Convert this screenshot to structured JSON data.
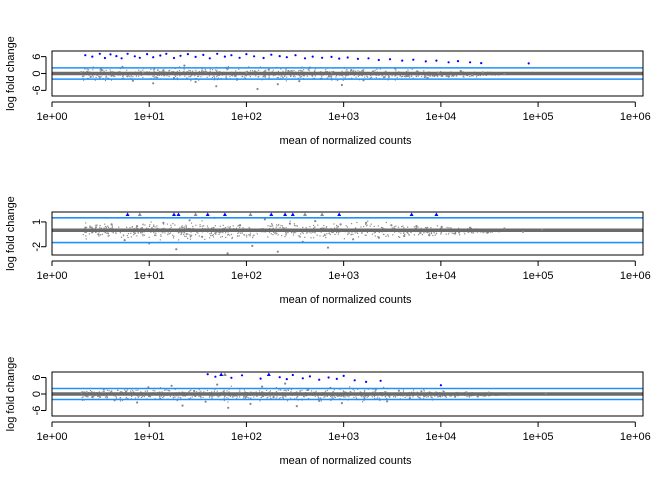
{
  "chart_data": [
    {
      "type": "scatter",
      "title": "",
      "xlabel": "mean of normalized counts",
      "ylabel": "log fold change",
      "x_scale": "log10",
      "xlim": [
        1,
        1200000
      ],
      "ylim": [
        -8,
        8
      ],
      "x_ticks": [
        1,
        10,
        100,
        1000,
        10000,
        100000,
        1000000
      ],
      "x_tick_labels": [
        "1e+00",
        "1e+01",
        "1e+02",
        "1e+03",
        "1e+04",
        "1e+05",
        "1e+06"
      ],
      "y_ticks": [
        6,
        0,
        -6
      ],
      "y_tick_labels": [
        "6",
        "0",
        "-6"
      ],
      "threshold_lines": [
        2,
        -2
      ],
      "center_line": 0,
      "series": [
        {
          "color": "#0000ff",
          "points": [
            [
              2.2,
              6.5
            ],
            [
              2.6,
              6.0
            ],
            [
              3.1,
              7.0
            ],
            [
              3.5,
              5.5
            ],
            [
              4.0,
              6.8
            ],
            [
              4.6,
              6.2
            ],
            [
              5.2,
              5.4
            ],
            [
              6.0,
              7.0
            ],
            [
              7.1,
              6.1
            ],
            [
              8.0,
              5.6
            ],
            [
              9.5,
              6.9
            ],
            [
              11,
              5.8
            ],
            [
              13,
              6.4
            ],
            [
              15,
              7.0
            ],
            [
              18,
              5.5
            ],
            [
              21,
              6.3
            ],
            [
              25,
              6.9
            ],
            [
              30,
              5.9
            ],
            [
              36,
              6.6
            ],
            [
              42,
              5.4
            ],
            [
              50,
              7.0
            ],
            [
              60,
              6.0
            ],
            [
              70,
              6.5
            ],
            [
              85,
              5.6
            ],
            [
              100,
              6.9
            ],
            [
              120,
              6.1
            ],
            [
              150,
              5.5
            ],
            [
              180,
              6.7
            ],
            [
              220,
              6.2
            ],
            [
              260,
              5.8
            ],
            [
              320,
              6.5
            ],
            [
              400,
              5.4
            ],
            [
              480,
              6.0
            ],
            [
              600,
              5.6
            ],
            [
              750,
              5.9
            ],
            [
              900,
              5.3
            ],
            [
              1100,
              5.7
            ],
            [
              1400,
              5.2
            ],
            [
              1800,
              5.4
            ],
            [
              2300,
              4.8
            ],
            [
              3000,
              5.1
            ],
            [
              4000,
              4.6
            ],
            [
              5200,
              4.9
            ],
            [
              7000,
              4.3
            ],
            [
              9000,
              4.6
            ],
            [
              12000,
              4.0
            ],
            [
              15000,
              4.4
            ],
            [
              20000,
              4.0
            ],
            [
              26000,
              3.7
            ],
            [
              80000,
              3.6
            ]
          ]
        },
        {
          "color": "#888888",
          "points": [
            [
              2.0,
              0.5
            ],
            [
              2.5,
              -1.2
            ],
            [
              3.2,
              1.5
            ],
            [
              4.1,
              -0.8
            ],
            [
              5.3,
              2.3
            ],
            [
              6.8,
              -2.6
            ],
            [
              8.7,
              0.3
            ],
            [
              11,
              -3.5
            ],
            [
              14,
              1.1
            ],
            [
              18,
              -1.6
            ],
            [
              23,
              2.8
            ],
            [
              30,
              -3.0
            ],
            [
              38,
              0.7
            ],
            [
              49,
              -4.5
            ],
            [
              63,
              1.9
            ],
            [
              80,
              -2.2
            ],
            [
              100,
              0.2
            ],
            [
              130,
              -5.5
            ],
            [
              170,
              1.4
            ],
            [
              210,
              -3.8
            ],
            [
              270,
              0.9
            ],
            [
              350,
              -2.7
            ],
            [
              450,
              2.1
            ],
            [
              580,
              -1.9
            ],
            [
              750,
              0.4
            ],
            [
              960,
              -4.1
            ],
            [
              1200,
              1.2
            ],
            [
              1600,
              -2.4
            ],
            [
              2000,
              0.6
            ],
            [
              2600,
              -1.3
            ],
            [
              3400,
              1.7
            ],
            [
              4400,
              -0.9
            ],
            [
              5700,
              0.8
            ],
            [
              7300,
              -1.6
            ],
            [
              9400,
              0.3
            ],
            [
              12000,
              -1.1
            ],
            [
              16000,
              0.9
            ],
            [
              21000,
              -0.5
            ],
            [
              27000,
              0.4
            ],
            [
              45000,
              -0.3
            ]
          ]
        }
      ]
    },
    {
      "type": "scatter",
      "title": "",
      "xlabel": "mean of normalized counts",
      "ylabel": "log fold change",
      "x_scale": "log10",
      "xlim": [
        1,
        1200000
      ],
      "ylim": [
        -3,
        2.2
      ],
      "x_ticks": [
        1,
        10,
        100,
        1000,
        10000,
        100000,
        1000000
      ],
      "x_tick_labels": [
        "1e+00",
        "1e+01",
        "1e+02",
        "1e+03",
        "1e+04",
        "1e+05",
        "1e+06"
      ],
      "y_ticks": [
        1,
        -2
      ],
      "y_tick_labels": [
        "1",
        "-2"
      ],
      "threshold_lines": [
        1.5,
        -1.5
      ],
      "center_line": 0,
      "series": [
        {
          "color": "#0000ff",
          "points": [
            [
              6,
              2.1
            ],
            [
              18,
              2.1
            ],
            [
              20,
              2.1
            ],
            [
              40,
              2.1
            ],
            [
              60,
              2.1
            ],
            [
              180,
              2.1
            ],
            [
              250,
              2.1
            ],
            [
              300,
              2.1
            ],
            [
              900,
              2.1
            ],
            [
              5000,
              2.1
            ],
            [
              9000,
              2.1
            ]
          ]
        },
        {
          "color": "#888888",
          "points": [
            [
              2.2,
              0.3
            ],
            [
              3.0,
              -0.5
            ],
            [
              4.1,
              0.7
            ],
            [
              5.6,
              -1.2
            ],
            [
              7.5,
              0.5
            ],
            [
              10,
              -1.6
            ],
            [
              14,
              0.9
            ],
            [
              19,
              -2.3
            ],
            [
              26,
              1.2
            ],
            [
              35,
              -0.8
            ],
            [
              47,
              1.5
            ],
            [
              64,
              -2.8
            ],
            [
              86,
              0.6
            ],
            [
              115,
              -1.9
            ],
            [
              155,
              1.3
            ],
            [
              210,
              -2.6
            ],
            [
              280,
              0.8
            ],
            [
              380,
              -1.4
            ],
            [
              510,
              1.1
            ],
            [
              690,
              -2.1
            ],
            [
              930,
              0.7
            ],
            [
              1250,
              -1.1
            ],
            [
              1700,
              0.9
            ],
            [
              2300,
              -0.9
            ],
            [
              3100,
              0.6
            ],
            [
              4200,
              -0.7
            ],
            [
              5600,
              0.5
            ],
            [
              7600,
              -0.6
            ],
            [
              10200,
              0.4
            ],
            [
              14000,
              -0.4
            ],
            [
              20000,
              0.3
            ],
            [
              30000,
              -0.3
            ],
            [
              45000,
              0.2
            ],
            [
              70000,
              -0.2
            ],
            [
              110000,
              0.1
            ],
            [
              8,
              2.1
            ],
            [
              30,
              2.1
            ],
            [
              110,
              2.1
            ],
            [
              400,
              2.1
            ],
            [
              600,
              2.1
            ]
          ]
        }
      ]
    },
    {
      "type": "scatter",
      "title": "",
      "xlabel": "mean of normalized counts",
      "ylabel": "log fold change",
      "x_scale": "log10",
      "xlim": [
        1,
        1200000
      ],
      "ylim": [
        -8,
        8
      ],
      "x_ticks": [
        1,
        10,
        100,
        1000,
        10000,
        100000,
        1000000
      ],
      "x_tick_labels": [
        "1e+00",
        "1e+01",
        "1e+02",
        "1e+03",
        "1e+04",
        "1e+05",
        "1e+06"
      ],
      "y_ticks": [
        6,
        0,
        -6
      ],
      "y_tick_labels": [
        "6",
        "0",
        "-6"
      ],
      "threshold_lines": [
        2,
        -2
      ],
      "center_line": 0,
      "series": [
        {
          "color": "#0000ff",
          "points": [
            [
              40,
              7.2
            ],
            [
              48,
              6.3
            ],
            [
              55,
              7.4
            ],
            [
              70,
              5.9
            ],
            [
              90,
              6.8
            ],
            [
              140,
              5.6
            ],
            [
              170,
              7.3
            ],
            [
              220,
              6.1
            ],
            [
              260,
              5.4
            ],
            [
              300,
              6.9
            ],
            [
              380,
              5.7
            ],
            [
              450,
              6.4
            ],
            [
              560,
              5.2
            ],
            [
              700,
              6.0
            ],
            [
              850,
              5.5
            ],
            [
              1000,
              6.6
            ],
            [
              1300,
              5.0
            ],
            [
              1700,
              4.4
            ],
            [
              2400,
              4.8
            ],
            [
              10000,
              3.2
            ]
          ]
        },
        {
          "color": "#888888",
          "points": [
            [
              2.0,
              0.4
            ],
            [
              2.6,
              -1.1
            ],
            [
              3.4,
              1.8
            ],
            [
              4.4,
              -2.3
            ],
            [
              5.8,
              0.9
            ],
            [
              7.5,
              -3.1
            ],
            [
              9.8,
              2.4
            ],
            [
              13,
              -1.7
            ],
            [
              17,
              3.0
            ],
            [
              22,
              -4.2
            ],
            [
              29,
              1.1
            ],
            [
              38,
              -2.8
            ],
            [
              50,
              3.4
            ],
            [
              65,
              -5.0
            ],
            [
              85,
              0.6
            ],
            [
              110,
              -3.6
            ],
            [
              145,
              2.7
            ],
            [
              190,
              -1.2
            ],
            [
              250,
              3.8
            ],
            [
              330,
              -4.4
            ],
            [
              430,
              1.5
            ],
            [
              560,
              -2.5
            ],
            [
              730,
              2.2
            ],
            [
              960,
              -3.3
            ],
            [
              1250,
              1.9
            ],
            [
              1640,
              -1.8
            ],
            [
              2140,
              1.6
            ],
            [
              2800,
              -2.7
            ],
            [
              3700,
              1.2
            ],
            [
              4800,
              -1.5
            ],
            [
              6300,
              1.0
            ],
            [
              8200,
              -2.0
            ],
            [
              10700,
              0.8
            ],
            [
              14000,
              -1.0
            ],
            [
              18300,
              0.6
            ],
            [
              24000,
              -0.9
            ],
            [
              31000,
              0.5
            ],
            [
              50000,
              -0.4
            ],
            [
              120000,
              0.2
            ],
            [
              60,
              7.6
            ]
          ]
        }
      ]
    }
  ]
}
